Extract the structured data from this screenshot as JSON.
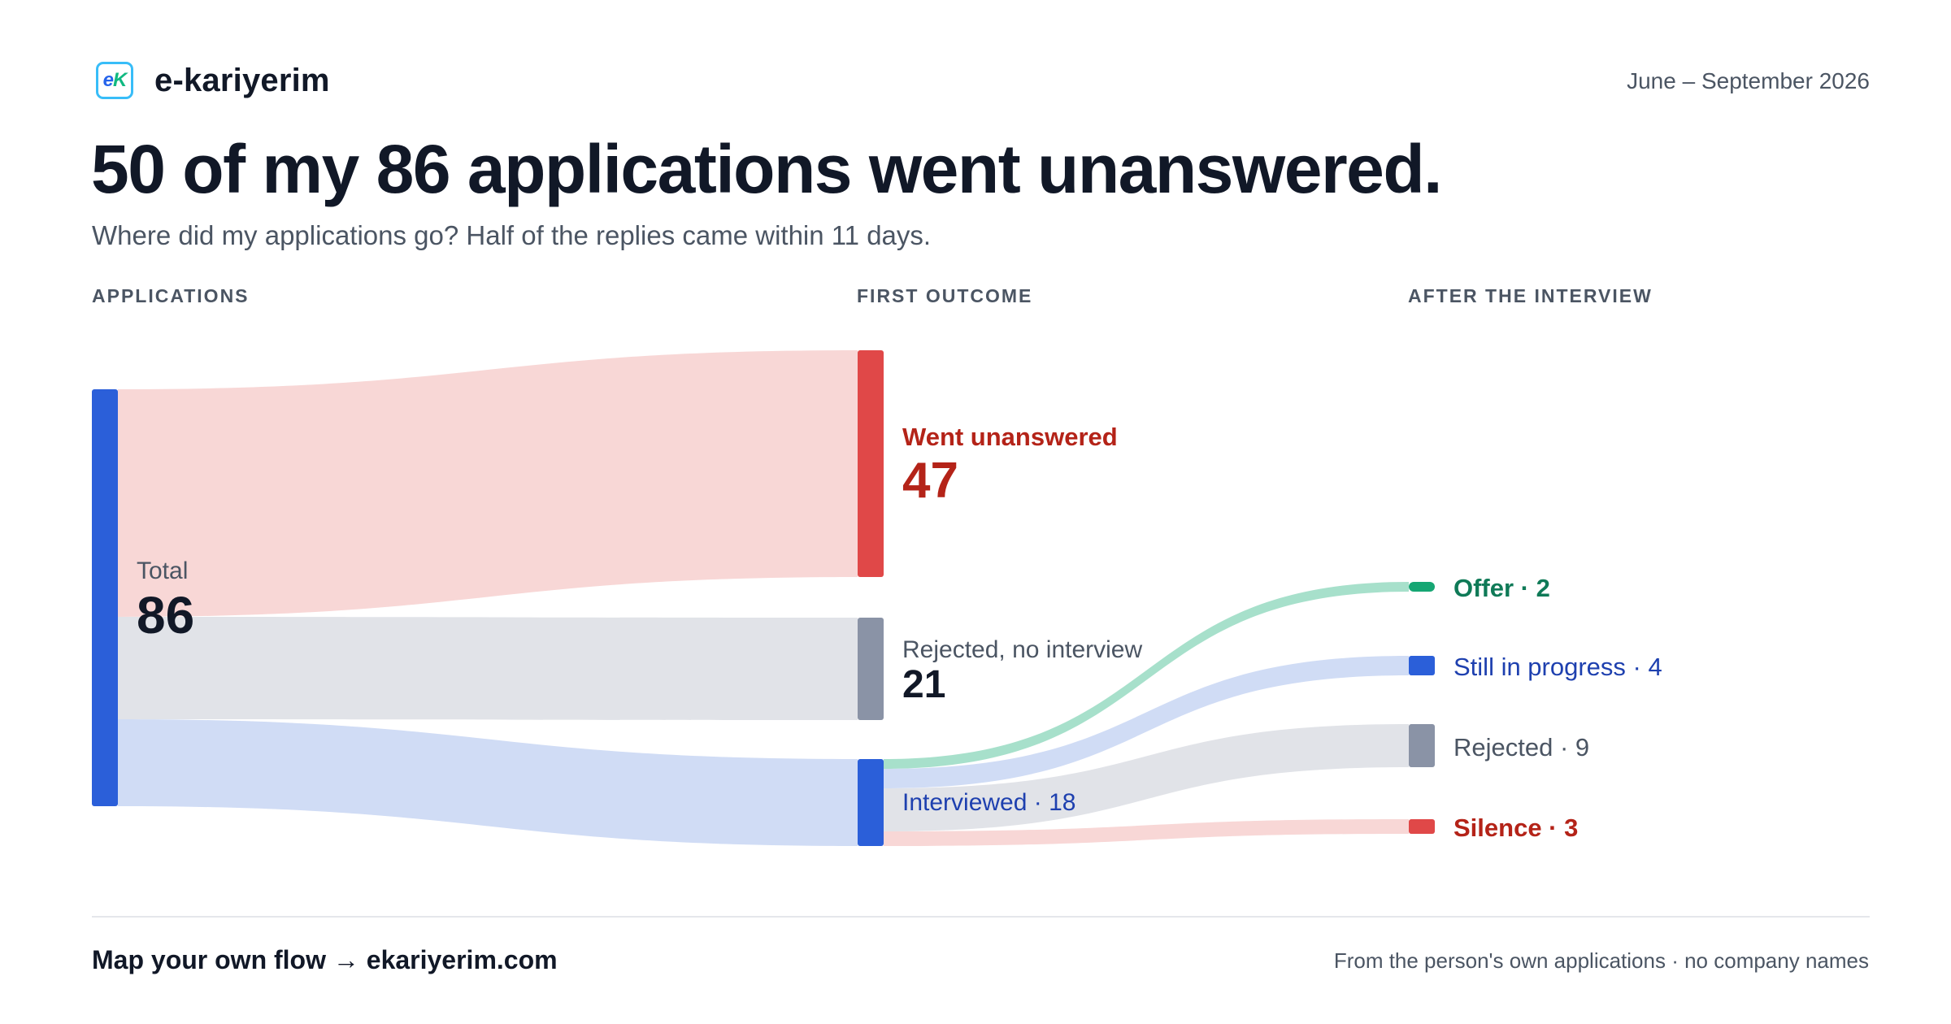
{
  "brand": {
    "logo_text": "eK",
    "name": "e-kariyerim"
  },
  "header": {
    "date_range": "June – September 2026"
  },
  "headline": "50 of my 86 applications went unanswered.",
  "subtitle": "Where did my applications go? Half of the replies came within 11 days.",
  "columns": {
    "applications": "APPLICATIONS",
    "first_outcome": "FIRST OUTCOME",
    "after_interview": "AFTER THE INTERVIEW"
  },
  "nodes": {
    "total": {
      "label": "Total",
      "value": "86"
    },
    "unanswered": {
      "label": "Went unanswered",
      "value": "47"
    },
    "rejected_no_interview": {
      "label": "Rejected, no interview",
      "value": "21"
    },
    "interviewed": {
      "label": "Interviewed · 18"
    },
    "offer": {
      "label": "Offer · 2"
    },
    "in_progress": {
      "label": "Still in progress · 4"
    },
    "rejected_after": {
      "label": "Rejected · 9"
    },
    "silence": {
      "label": "Silence · 3"
    }
  },
  "flows": [
    {
      "from": "Total",
      "to": "Went unanswered",
      "value": 47
    },
    {
      "from": "Total",
      "to": "Rejected, no interview",
      "value": 21
    },
    {
      "from": "Total",
      "to": "Interviewed",
      "value": 18
    },
    {
      "from": "Interviewed",
      "to": "Offer",
      "value": 2
    },
    {
      "from": "Interviewed",
      "to": "Still in progress",
      "value": 4
    },
    {
      "from": "Interviewed",
      "to": "Rejected",
      "value": 9
    },
    {
      "from": "Interviewed",
      "to": "Silence",
      "value": 3
    }
  ],
  "colors": {
    "total": "#2b5fd9",
    "unanswered": "#e04848",
    "unanswered_flow": "#f8d7d6",
    "rejected": "#8a93a6",
    "rejected_flow": "#e1e3e8",
    "interviewed": "#2b5fd9",
    "interviewed_flow": "#d0dcf5",
    "offer": "#16a673",
    "offer_flow": "#a7e0cb",
    "silence": "#e04848",
    "silence_flow": "#f8d7d6"
  },
  "footer": {
    "cta": "Map your own flow → ekariyerim.com",
    "note": "From the person's own applications · no company names"
  }
}
